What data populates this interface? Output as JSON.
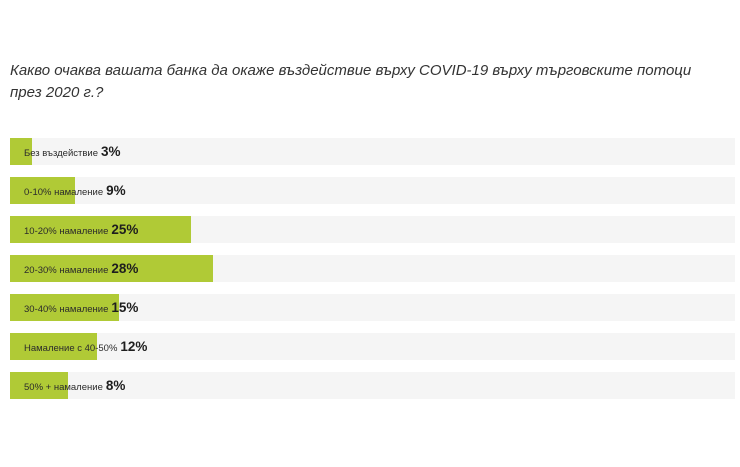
{
  "chart_data": {
    "type": "bar",
    "orientation": "horizontal",
    "title": "Какво очаква вашата банка да окаже въздействие върху COVID-19 върху търговските потоци през 2020 г.?",
    "categories": [
      "Без въздействие",
      "0-10% намаление",
      "10-20% намаление",
      "20-30% намаление",
      "30-40% намаление",
      "Намаление с 40-50%",
      "50% + намаление"
    ],
    "values": [
      3,
      9,
      25,
      28,
      15,
      12,
      8
    ],
    "value_labels": [
      "3%",
      "9%",
      "25%",
      "28%",
      "15%",
      "12%",
      "8%"
    ],
    "unit": "%",
    "xlim": [
      0,
      100
    ],
    "grid": false,
    "legend": "none",
    "colors": {
      "bar": "#b0ca36",
      "track": "#f5f5f5"
    }
  }
}
